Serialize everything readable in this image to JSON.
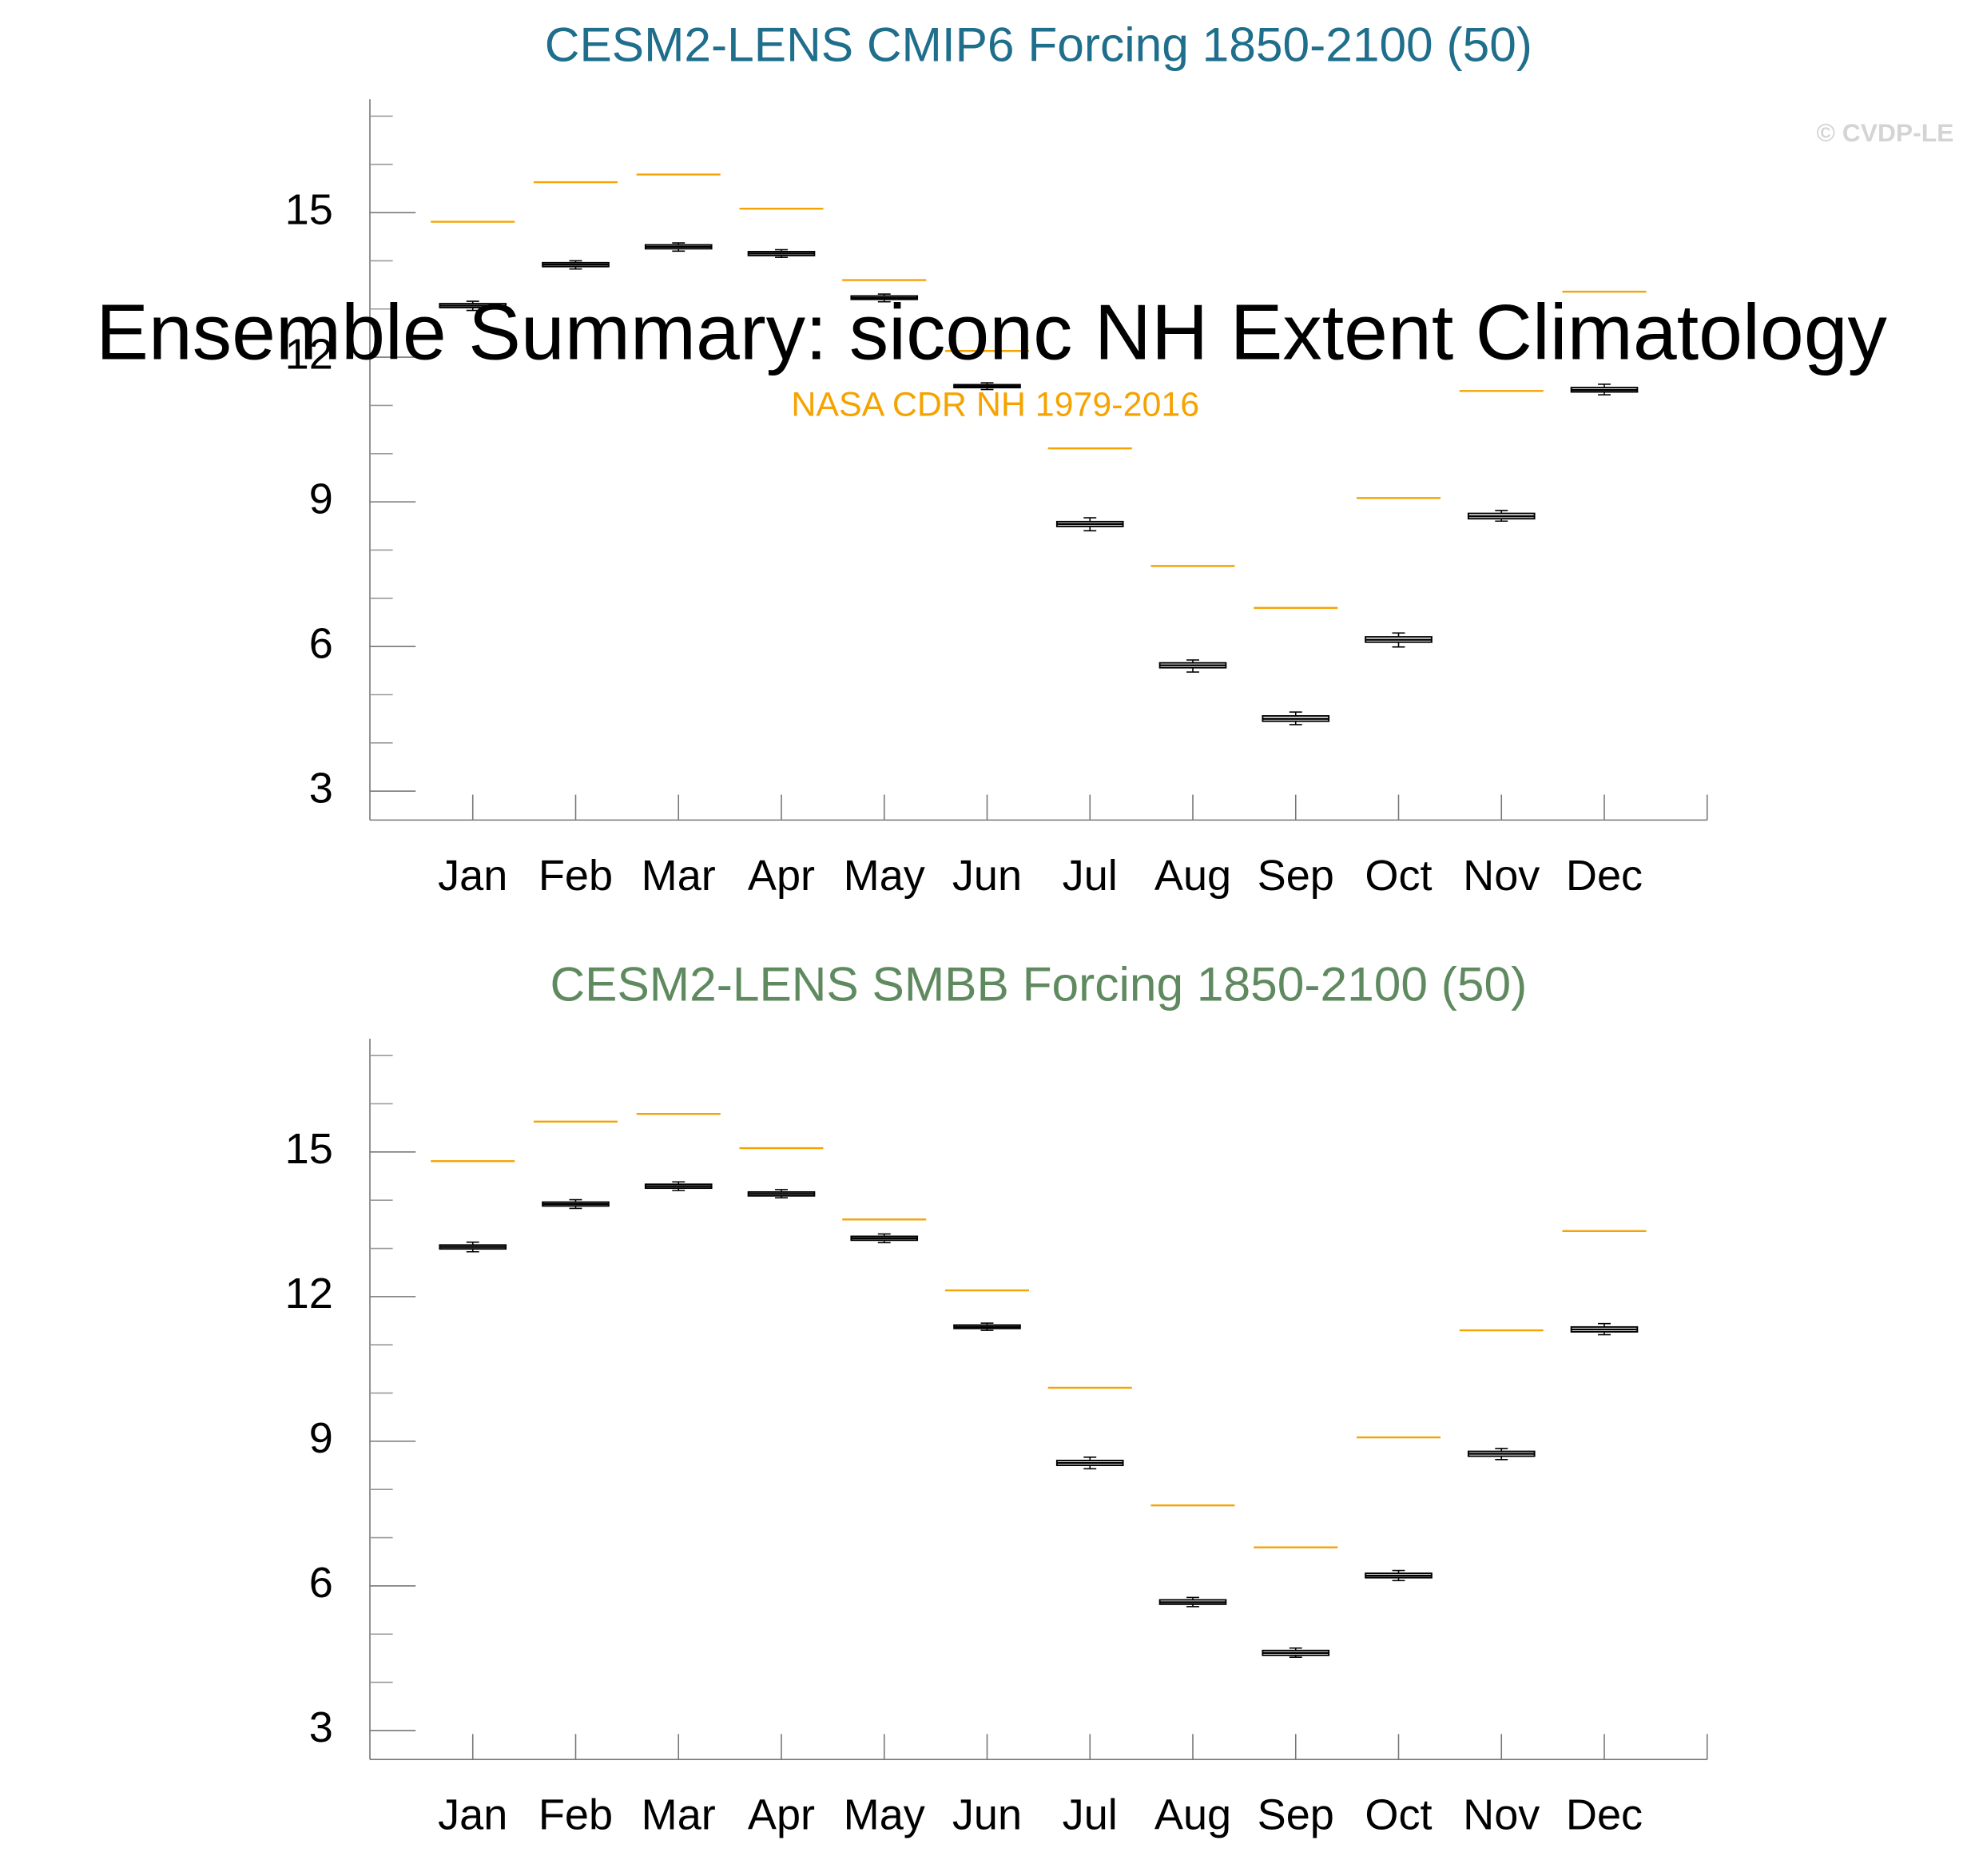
{
  "header": {
    "title": "Ensemble Summary: siconc NH Extent Climatology",
    "subtitle": "NASA CDR NH 1979-2016",
    "subtitle_color": "#f5a300",
    "watermark": "© CVDP-LE"
  },
  "chart_data": [
    {
      "type": "box",
      "title": "CESM2-LENS CMIP6 Forcing 1850-2100 (50)",
      "title_color": "#1f6e8c",
      "categories": [
        "Jan",
        "Feb",
        "Mar",
        "Apr",
        "May",
        "Jun",
        "Jul",
        "Aug",
        "Sep",
        "Oct",
        "Nov",
        "Dec"
      ],
      "ylim": [
        2.4,
        17.35
      ],
      "yticks": [
        3,
        6,
        9,
        12,
        15
      ],
      "yminor_ticks": [
        4,
        5,
        7,
        8,
        10,
        11,
        13,
        14,
        16,
        17
      ],
      "box_color": "#000000",
      "min": [
        12.97,
        13.83,
        14.2,
        14.07,
        13.15,
        11.33,
        8.4,
        5.47,
        4.38,
        5.99,
        8.6,
        11.22
      ],
      "q1": [
        13.03,
        13.88,
        14.25,
        14.11,
        13.2,
        11.37,
        8.49,
        5.56,
        4.45,
        6.09,
        8.65,
        11.28
      ],
      "median": [
        13.07,
        13.92,
        14.29,
        14.15,
        13.23,
        11.4,
        8.54,
        5.61,
        4.5,
        6.14,
        8.7,
        11.32
      ],
      "q3": [
        13.11,
        13.96,
        14.33,
        14.19,
        13.27,
        11.43,
        8.59,
        5.66,
        4.56,
        6.2,
        8.76,
        11.37
      ],
      "max": [
        13.16,
        14.0,
        14.37,
        14.23,
        13.31,
        11.47,
        8.67,
        5.72,
        4.64,
        6.28,
        8.82,
        11.44
      ],
      "reference": {
        "color": "#f5a300",
        "values": [
          14.81,
          15.63,
          15.79,
          15.08,
          13.6,
          12.13,
          10.11,
          7.67,
          6.8,
          9.08,
          11.3,
          13.36
        ]
      }
    },
    {
      "type": "box",
      "title": "CESM2-LENS SMBB Forcing 1850-2100 (50)",
      "title_color": "#5f8a5f",
      "categories": [
        "Jan",
        "Feb",
        "Mar",
        "Apr",
        "May",
        "Jun",
        "Jul",
        "Aug",
        "Sep",
        "Oct",
        "Nov",
        "Dec"
      ],
      "ylim": [
        2.4,
        17.35
      ],
      "yticks": [
        3,
        6,
        9,
        12,
        15
      ],
      "yminor_ticks": [
        4,
        5,
        7,
        8,
        10,
        11,
        13,
        14,
        16,
        17
      ],
      "box_color": "#000000",
      "min": [
        12.93,
        13.83,
        14.2,
        14.05,
        13.12,
        11.3,
        8.43,
        5.57,
        4.52,
        6.11,
        8.62,
        11.21
      ],
      "q1": [
        12.99,
        13.88,
        14.25,
        14.09,
        13.17,
        11.34,
        8.5,
        5.62,
        4.56,
        6.17,
        8.69,
        11.27
      ],
      "median": [
        13.03,
        13.92,
        14.29,
        14.13,
        13.21,
        11.37,
        8.55,
        5.66,
        4.61,
        6.21,
        8.74,
        11.32
      ],
      "q3": [
        13.07,
        13.96,
        14.33,
        14.17,
        13.25,
        11.41,
        8.6,
        5.71,
        4.66,
        6.26,
        8.79,
        11.37
      ],
      "max": [
        13.13,
        14.01,
        14.38,
        14.22,
        13.3,
        11.45,
        8.67,
        5.76,
        4.71,
        6.32,
        8.85,
        11.44
      ],
      "reference": {
        "color": "#f5a300",
        "values": [
          14.81,
          15.63,
          15.79,
          15.08,
          13.6,
          12.13,
          10.11,
          7.67,
          6.8,
          9.08,
          11.3,
          13.36
        ]
      }
    }
  ]
}
